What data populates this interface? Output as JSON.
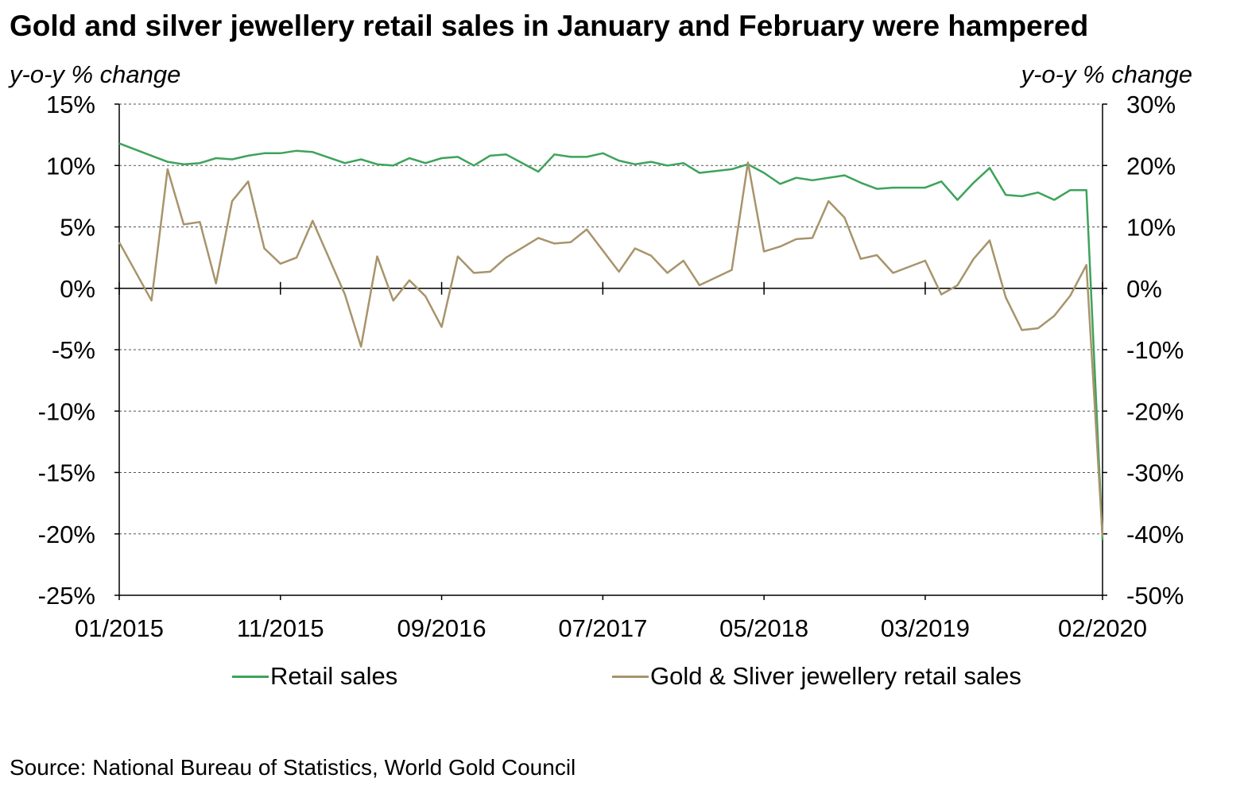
{
  "chart_data": {
    "type": "line",
    "title": "Gold and silver jewellery retail sales in January and February were hampered",
    "ylabel_left": "y-o-y % change",
    "ylabel_right": "y-o-y % change",
    "ylim_left": [
      -25,
      15
    ],
    "ylim_right": [
      -50,
      30
    ],
    "yticks_left": [
      "15%",
      "10%",
      "5%",
      "0%",
      "-5%",
      "-10%",
      "-15%",
      "-20%",
      "-25%"
    ],
    "yticks_right": [
      "30%",
      "20%",
      "10%",
      "0%",
      "-10%",
      "-20%",
      "-30%",
      "-40%",
      "-50%"
    ],
    "xticks": [
      "01/2015",
      "11/2015",
      "09/2016",
      "07/2017",
      "05/2018",
      "03/2019",
      "02/2020"
    ],
    "grid": true,
    "legend_position": "bottom",
    "x": [
      "01/2015",
      "02/2015",
      "03/2015",
      "04/2015",
      "05/2015",
      "06/2015",
      "07/2015",
      "08/2015",
      "09/2015",
      "10/2015",
      "11/2015",
      "12/2015",
      "01/2016",
      "02/2016",
      "03/2016",
      "04/2016",
      "05/2016",
      "06/2016",
      "07/2016",
      "08/2016",
      "09/2016",
      "10/2016",
      "11/2016",
      "12/2016",
      "01/2017",
      "02/2017",
      "03/2017",
      "04/2017",
      "05/2017",
      "06/2017",
      "07/2017",
      "08/2017",
      "09/2017",
      "10/2017",
      "11/2017",
      "12/2017",
      "01/2018",
      "02/2018",
      "03/2018",
      "04/2018",
      "05/2018",
      "06/2018",
      "07/2018",
      "08/2018",
      "09/2018",
      "10/2018",
      "11/2018",
      "12/2018",
      "01/2019",
      "02/2019",
      "03/2019",
      "04/2019",
      "05/2019",
      "06/2019",
      "07/2019",
      "08/2019",
      "09/2019",
      "10/2019",
      "11/2019",
      "12/2019",
      "01/2020",
      "02/2020"
    ],
    "series": [
      {
        "name": "Retail sales",
        "axis": "left",
        "color": "#3da35a",
        "values": [
          11.8,
          null,
          10.8,
          10.3,
          10.1,
          10.2,
          10.6,
          10.5,
          10.8,
          11.0,
          11.0,
          11.2,
          11.1,
          null,
          10.2,
          10.5,
          10.1,
          10.0,
          10.6,
          10.2,
          10.6,
          10.7,
          10.0,
          10.8,
          10.9,
          null,
          9.5,
          10.9,
          10.7,
          10.7,
          11.0,
          10.4,
          10.1,
          10.3,
          10.0,
          10.2,
          9.4,
          null,
          9.7,
          10.1,
          9.4,
          8.5,
          9.0,
          8.8,
          null,
          9.2,
          8.6,
          8.1,
          8.2,
          null,
          8.2,
          8.7,
          7.2,
          8.6,
          9.8,
          7.6,
          7.5,
          7.8,
          7.2,
          8.0,
          8.0,
          -20.5
        ]
      },
      {
        "name": "Gold & Sliver jewellery retail sales",
        "axis": "right",
        "color": "#a8946c",
        "values": [
          7.5,
          null,
          -2.0,
          19.4,
          10.4,
          10.8,
          0.8,
          14.2,
          17.4,
          6.5,
          4.0,
          5.0,
          11.0,
          null,
          -1.0,
          -9.5,
          5.2,
          -2.0,
          1.3,
          -1.3,
          -6.3,
          5.2,
          2.5,
          2.7,
          5.0,
          null,
          8.2,
          7.3,
          7.5,
          9.6,
          null,
          2.7,
          6.5,
          5.3,
          2.5,
          4.5,
          0.5,
          null,
          3.0,
          20.5,
          6.0,
          6.8,
          8.0,
          8.2,
          14.2,
          11.5,
          4.8,
          5.4,
          2.5,
          null,
          4.5,
          -1.0,
          0.5,
          4.8,
          7.8,
          -1.5,
          -6.8,
          -6.5,
          -4.5,
          -1.2,
          3.8,
          -40.5
        ]
      }
    ]
  },
  "title": "Gold and silver jewellery retail sales in January and February were hampered",
  "ylabel_left": "y-o-y % change",
  "ylabel_right": "y-o-y % change",
  "legend": {
    "retail": "Retail sales",
    "jewellery": "Gold & Sliver jewellery retail sales"
  },
  "source": "Source: National Bureau of Statistics, World Gold Council"
}
